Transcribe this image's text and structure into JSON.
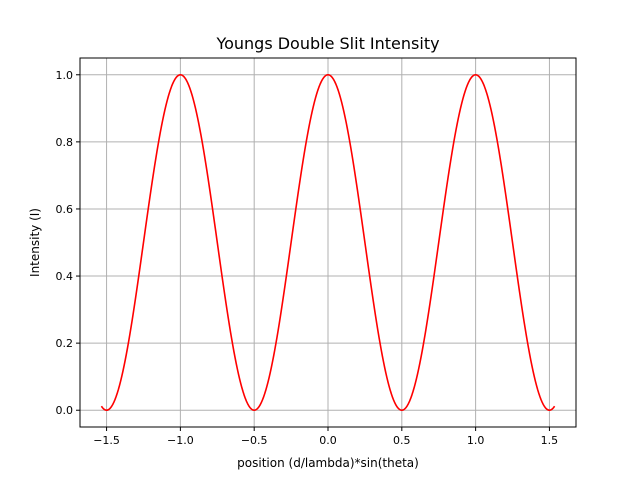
{
  "chart_data": {
    "type": "line",
    "title": "Youngs Double Slit Intensity",
    "xlabel": "position (d/lambda)*sin(theta)",
    "ylabel": "Intensity (I)",
    "xlim": [
      -1.68,
      1.68
    ],
    "ylim": [
      -0.05,
      1.05
    ],
    "x_ticks": [
      -1.5,
      -1.0,
      -0.5,
      0.0,
      0.5,
      1.0,
      1.5
    ],
    "x_tick_labels": [
      "−1.5",
      "−1.0",
      "−0.5",
      "0.0",
      "0.5",
      "1.0",
      "1.5"
    ],
    "y_ticks": [
      0.0,
      0.2,
      0.4,
      0.6,
      0.8,
      1.0
    ],
    "y_tick_labels": [
      "0.0",
      "0.2",
      "0.4",
      "0.6",
      "0.8",
      "1.0"
    ],
    "grid": true,
    "series": [
      {
        "color": "#ff0000",
        "function": "cos^2(pi*x)",
        "x_start": -1.535,
        "x_end": 1.535,
        "x": [
          -1.535,
          -1.5,
          -1.25,
          -1.0,
          -0.75,
          -0.5,
          -0.25,
          0.0,
          0.25,
          0.5,
          0.75,
          1.0,
          1.25,
          1.5,
          1.535
        ],
        "values": [
          0.012,
          0.0,
          0.5,
          1.0,
          0.5,
          0.0,
          0.5,
          1.0,
          0.5,
          0.0,
          0.5,
          1.0,
          0.5,
          0.0,
          0.012
        ]
      }
    ]
  }
}
